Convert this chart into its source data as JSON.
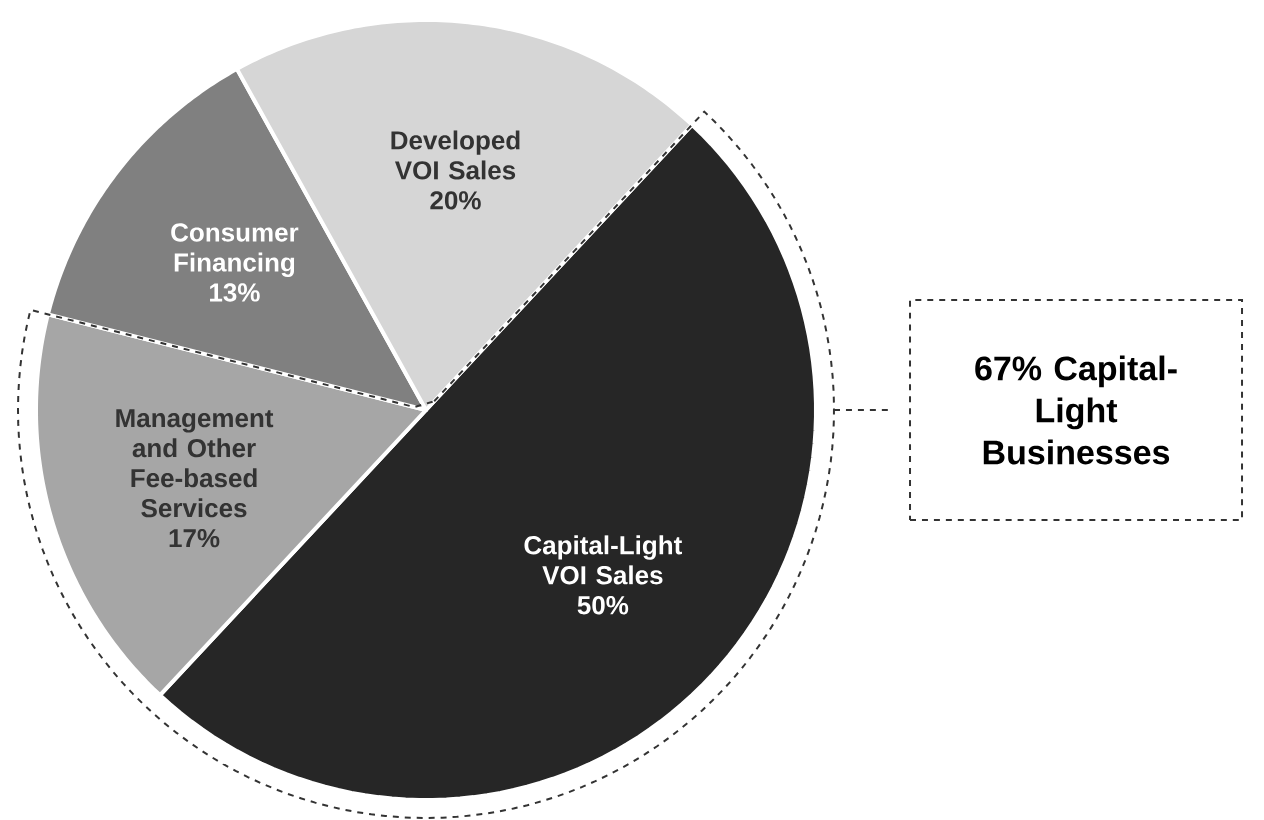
{
  "chart_data": {
    "type": "pie",
    "categories": [
      "Capital-Light VOI Sales",
      "Management and Other Fee-based Services",
      "Consumer Financing",
      "Developed VOI Sales"
    ],
    "values": [
      50,
      17,
      13,
      20
    ],
    "value_labels": [
      "50%",
      "17%",
      "13%",
      "20%"
    ],
    "colors": [
      "#262626",
      "#a6a6a6",
      "#808080",
      "#d6d6d6"
    ],
    "annotations": [
      "67% Capital-Light Businesses"
    ]
  }
}
